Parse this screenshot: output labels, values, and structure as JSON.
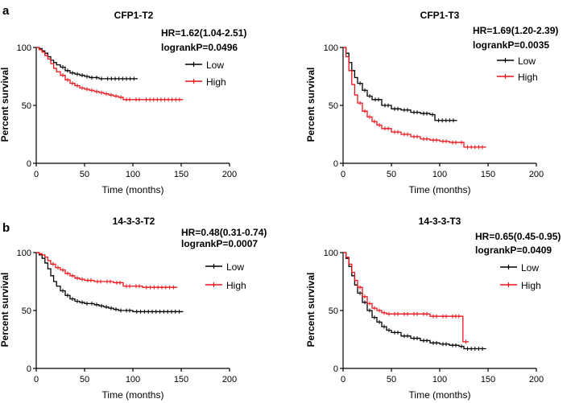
{
  "panels": [
    {
      "label": "a"
    },
    {
      "label": "b"
    }
  ],
  "colors": {
    "low": "#000000",
    "high": "#e8141a"
  },
  "chart_data": [
    {
      "type": "line",
      "title": "CFP1-T2",
      "hr": "HR=1.62(1.04-2.51)",
      "p": "logrankP=0.0496",
      "xlabel": "Time (months)",
      "ylabel": "Percent survival",
      "xlim": [
        0,
        200
      ],
      "ylim": [
        0,
        100
      ],
      "xticks": [
        "0",
        "50",
        "100",
        "150",
        "200"
      ],
      "yticks": [
        "0",
        "50",
        "100"
      ],
      "legend": [
        "Low",
        "High"
      ],
      "series": [
        {
          "name": "Low",
          "x": [
            0,
            3,
            6,
            9,
            12,
            15,
            18,
            21,
            25,
            30,
            35,
            40,
            45,
            50,
            55,
            60,
            65,
            70,
            105
          ],
          "y": [
            100,
            99,
            97,
            95,
            92,
            89,
            87,
            85,
            83,
            80,
            78,
            77,
            76,
            75,
            74,
            74,
            73,
            73,
            73
          ]
        },
        {
          "name": "High",
          "x": [
            0,
            3,
            6,
            9,
            12,
            15,
            18,
            21,
            25,
            30,
            35,
            40,
            45,
            50,
            55,
            60,
            65,
            70,
            75,
            80,
            85,
            90,
            100,
            110,
            152
          ],
          "y": [
            100,
            98,
            96,
            93,
            90,
            86,
            82,
            79,
            76,
            72,
            69,
            67,
            65,
            64,
            63,
            62,
            61,
            60,
            59,
            58,
            57,
            55,
            55,
            55,
            55
          ]
        }
      ]
    },
    {
      "type": "line",
      "title": "CFP1-T3",
      "hr": "HR=1.69(1.20-2.39)",
      "p": "logrankP=0.0035",
      "xlabel": "Time (months)",
      "ylabel": "Percent survival",
      "xlim": [
        0,
        200
      ],
      "ylim": [
        0,
        100
      ],
      "xticks": [
        "0",
        "50",
        "100",
        "150",
        "200"
      ],
      "yticks": [
        "0",
        "50",
        "100"
      ],
      "legend": [
        "Low",
        "High"
      ],
      "series": [
        {
          "name": "Low",
          "x": [
            0,
            3,
            6,
            9,
            12,
            15,
            20,
            25,
            30,
            40,
            50,
            60,
            70,
            80,
            90,
            95,
            118
          ],
          "y": [
            100,
            95,
            87,
            80,
            74,
            69,
            63,
            58,
            55,
            50,
            47,
            46,
            44,
            43,
            42,
            37,
            37
          ]
        },
        {
          "name": "High",
          "x": [
            0,
            3,
            6,
            9,
            12,
            15,
            20,
            25,
            30,
            35,
            40,
            50,
            60,
            70,
            80,
            90,
            100,
            110,
            120,
            125,
            148
          ],
          "y": [
            100,
            92,
            80,
            68,
            59,
            52,
            45,
            40,
            36,
            33,
            30,
            27,
            25,
            23,
            21,
            20,
            19,
            18,
            18,
            14,
            14
          ]
        }
      ]
    },
    {
      "type": "line",
      "title": "14-3-3-T2",
      "hr": "HR=0.48(0.31-0.74)",
      "p": "logrankP=0.0007",
      "xlabel": "Time (months)",
      "ylabel": "Percent survival",
      "xlim": [
        0,
        200
      ],
      "ylim": [
        0,
        100
      ],
      "xticks": [
        "0",
        "50",
        "100",
        "150",
        "200"
      ],
      "yticks": [
        "0",
        "50",
        "100"
      ],
      "legend": [
        "Low",
        "High"
      ],
      "series": [
        {
          "name": "Low",
          "x": [
            0,
            3,
            6,
            9,
            12,
            15,
            18,
            21,
            25,
            30,
            35,
            40,
            45,
            50,
            55,
            60,
            65,
            70,
            75,
            80,
            85,
            90,
            100,
            152
          ],
          "y": [
            100,
            98,
            95,
            91,
            86,
            80,
            75,
            71,
            67,
            63,
            60,
            58,
            57,
            56,
            56,
            55,
            54,
            53,
            52,
            51,
            50,
            50,
            49,
            49
          ]
        },
        {
          "name": "High",
          "x": [
            0,
            3,
            6,
            9,
            12,
            15,
            20,
            25,
            30,
            35,
            40,
            45,
            50,
            60,
            70,
            80,
            90,
            100,
            110,
            146
          ],
          "y": [
            100,
            99,
            98,
            96,
            93,
            90,
            87,
            85,
            82,
            80,
            78,
            77,
            76,
            75,
            75,
            74,
            71,
            71,
            70,
            70
          ]
        }
      ]
    },
    {
      "type": "line",
      "title": "14-3-3-T3",
      "hr": "HR=0.65(0.45-0.95)",
      "p": "logrankP=0.0409",
      "xlabel": "Time (months)",
      "ylabel": "Percent survival",
      "xlim": [
        0,
        200
      ],
      "ylim": [
        0,
        100
      ],
      "xticks": [
        "0",
        "50",
        "100",
        "150",
        "200"
      ],
      "yticks": [
        "0",
        "50",
        "100"
      ],
      "legend": [
        "Low",
        "High"
      ],
      "series": [
        {
          "name": "Low",
          "x": [
            0,
            3,
            6,
            9,
            12,
            15,
            20,
            25,
            30,
            35,
            40,
            45,
            50,
            60,
            70,
            80,
            90,
            100,
            110,
            120,
            125,
            148
          ],
          "y": [
            100,
            95,
            88,
            80,
            72,
            65,
            57,
            50,
            44,
            40,
            36,
            33,
            31,
            28,
            26,
            24,
            22,
            21,
            20,
            19,
            17,
            17
          ]
        },
        {
          "name": "High",
          "x": [
            0,
            3,
            6,
            9,
            12,
            15,
            20,
            25,
            30,
            35,
            40,
            45,
            50,
            60,
            70,
            80,
            90,
            100,
            110,
            123,
            124,
            130
          ],
          "y": [
            100,
            96,
            90,
            83,
            76,
            70,
            62,
            56,
            52,
            50,
            48,
            47,
            47,
            47,
            47,
            47,
            45,
            45,
            45,
            45,
            23,
            23
          ]
        }
      ]
    }
  ]
}
